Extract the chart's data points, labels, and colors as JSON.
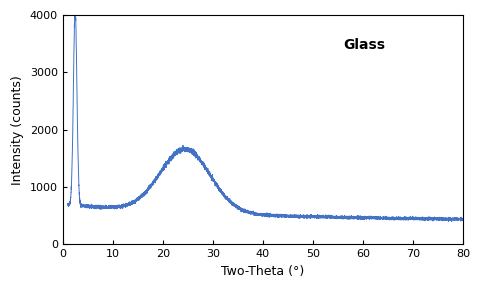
{
  "title": "Glass",
  "xlabel": "Two-Theta (°)",
  "ylabel": "Intensity (counts)",
  "xlim": [
    0,
    80
  ],
  "ylim": [
    0,
    4000
  ],
  "xticks": [
    0,
    10,
    20,
    30,
    40,
    50,
    60,
    70,
    80
  ],
  "yticks": [
    0,
    1000,
    2000,
    3000,
    4000
  ],
  "line_color": "#4472C4",
  "line_width": 0.7,
  "background_color": "#ffffff",
  "title_fontsize": 10,
  "label_fontsize": 9,
  "tick_fontsize": 8,
  "noise_seed": 42
}
